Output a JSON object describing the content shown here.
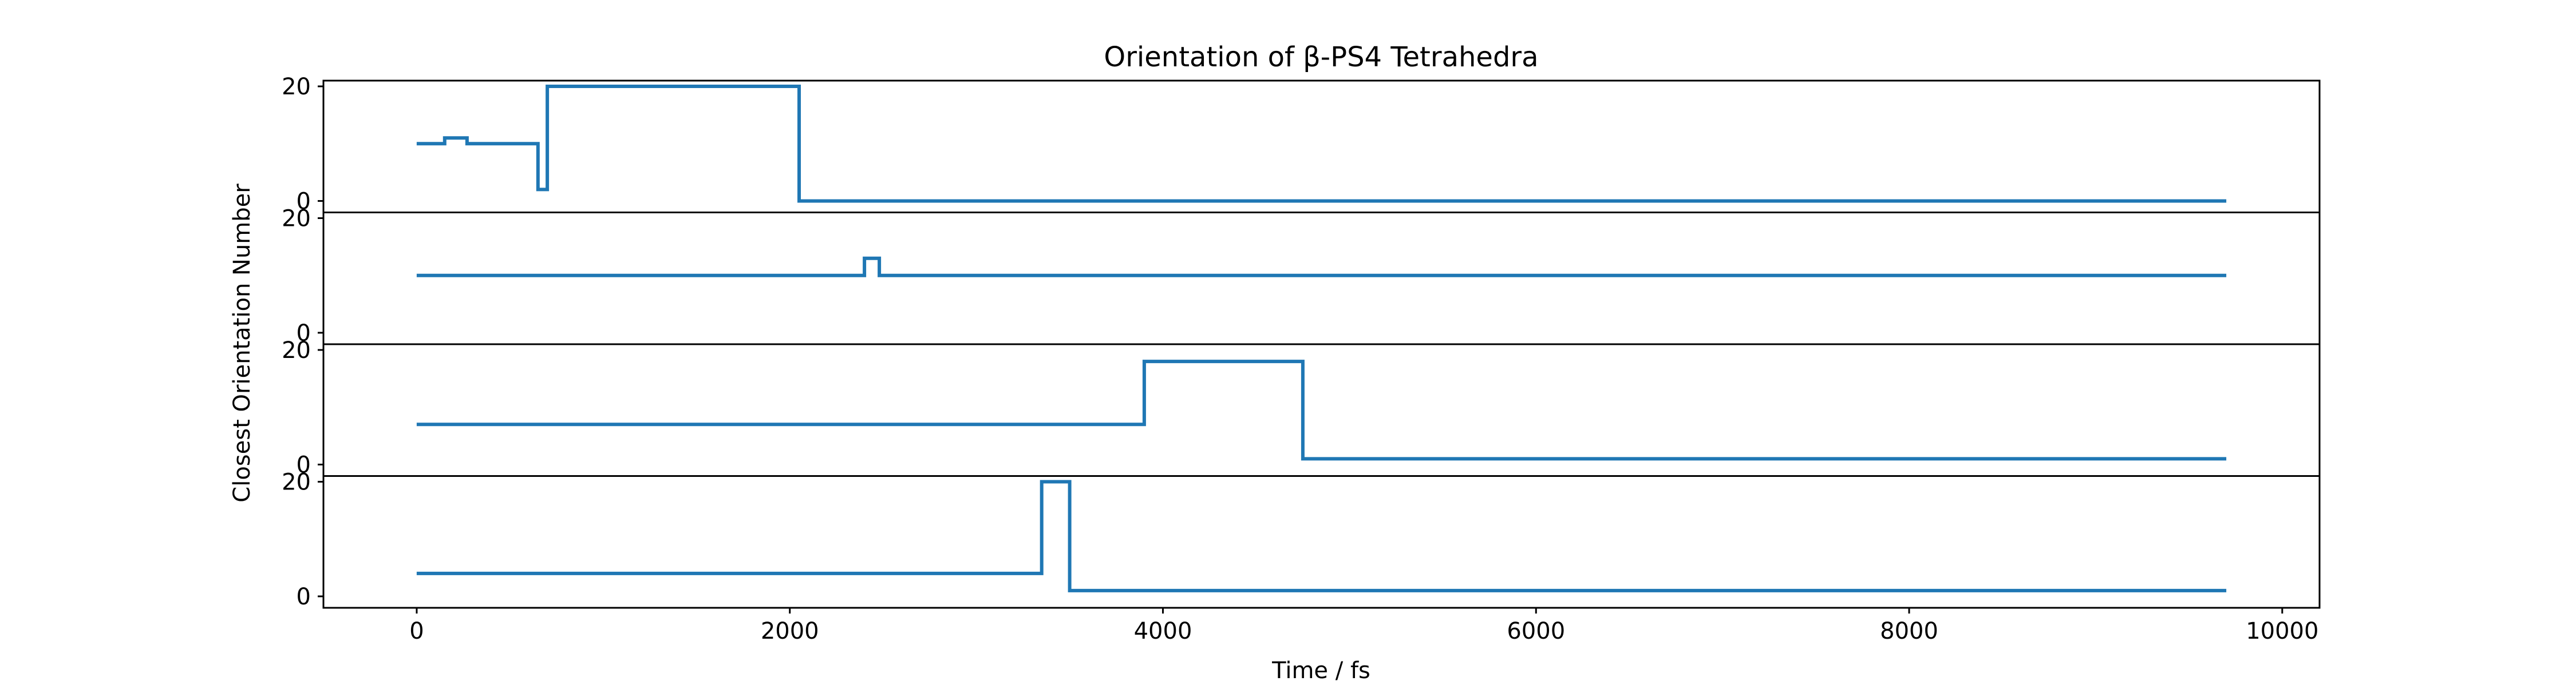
{
  "chart_data": {
    "type": "line",
    "title": "Orientation of β-PS4 Tetrahedra",
    "xlabel": "Time / fs",
    "ylabel": "Closest Orientation Number",
    "xlim": [
      -500,
      10200
    ],
    "x_ticks": [
      0,
      2000,
      4000,
      6000,
      8000,
      10000
    ],
    "line_color": "#1f77b4",
    "grid": false,
    "subplots": [
      {
        "ylim": [
          -2,
          21
        ],
        "y_ticks": [
          0,
          20
        ],
        "steps": [
          [
            0,
            10
          ],
          [
            150,
            11
          ],
          [
            270,
            10
          ],
          [
            650,
            2
          ],
          [
            700,
            20
          ],
          [
            2050,
            0
          ],
          [
            9700,
            0
          ]
        ]
      },
      {
        "ylim": [
          -2,
          21
        ],
        "y_ticks": [
          0,
          20
        ],
        "steps": [
          [
            0,
            10
          ],
          [
            2400,
            13
          ],
          [
            2480,
            10
          ],
          [
            9700,
            10
          ]
        ]
      },
      {
        "ylim": [
          -2,
          21
        ],
        "y_ticks": [
          0,
          20
        ],
        "steps": [
          [
            0,
            7
          ],
          [
            3900,
            18
          ],
          [
            4750,
            1
          ],
          [
            9700,
            1
          ]
        ]
      },
      {
        "ylim": [
          -2,
          21
        ],
        "y_ticks": [
          0,
          20
        ],
        "steps": [
          [
            0,
            4
          ],
          [
            3350,
            20
          ],
          [
            3500,
            1
          ],
          [
            9700,
            1
          ]
        ]
      }
    ]
  }
}
